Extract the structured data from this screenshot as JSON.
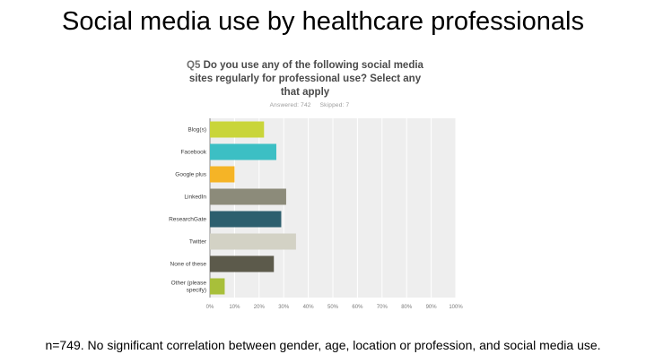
{
  "slide": {
    "title": "Social media use by healthcare professionals",
    "footnote": "n=749. No significant correlation between gender, age, location or profession, and social media use."
  },
  "survey": {
    "question_number": "Q5",
    "question": "Do you use any of the following social media sites regularly for professional use? Select any that apply",
    "answered": "Answered: 742",
    "skipped": "Skipped: 7"
  },
  "chart_data": {
    "type": "bar",
    "orientation": "horizontal",
    "categories": [
      "Blog(s)",
      "Facebook",
      "Google plus",
      "LinkedIn",
      "ResearchGate",
      "Twitter",
      "None of these",
      "Other (please specify)"
    ],
    "values": [
      22,
      27,
      10,
      31,
      29,
      35,
      26,
      6
    ],
    "colors": [
      "#c9d53a",
      "#3cbfc4",
      "#f5b426",
      "#8c8b7a",
      "#2d5f6e",
      "#d3d2c5",
      "#5c5a4b",
      "#a8bf3a"
    ],
    "unit": "%",
    "xlim": [
      0,
      100
    ],
    "xticks": [
      "0%",
      "10%",
      "20%",
      "30%",
      "40%",
      "50%",
      "60%",
      "70%",
      "80%",
      "90%",
      "100%"
    ],
    "grid": true,
    "background": "#eeeeee"
  }
}
